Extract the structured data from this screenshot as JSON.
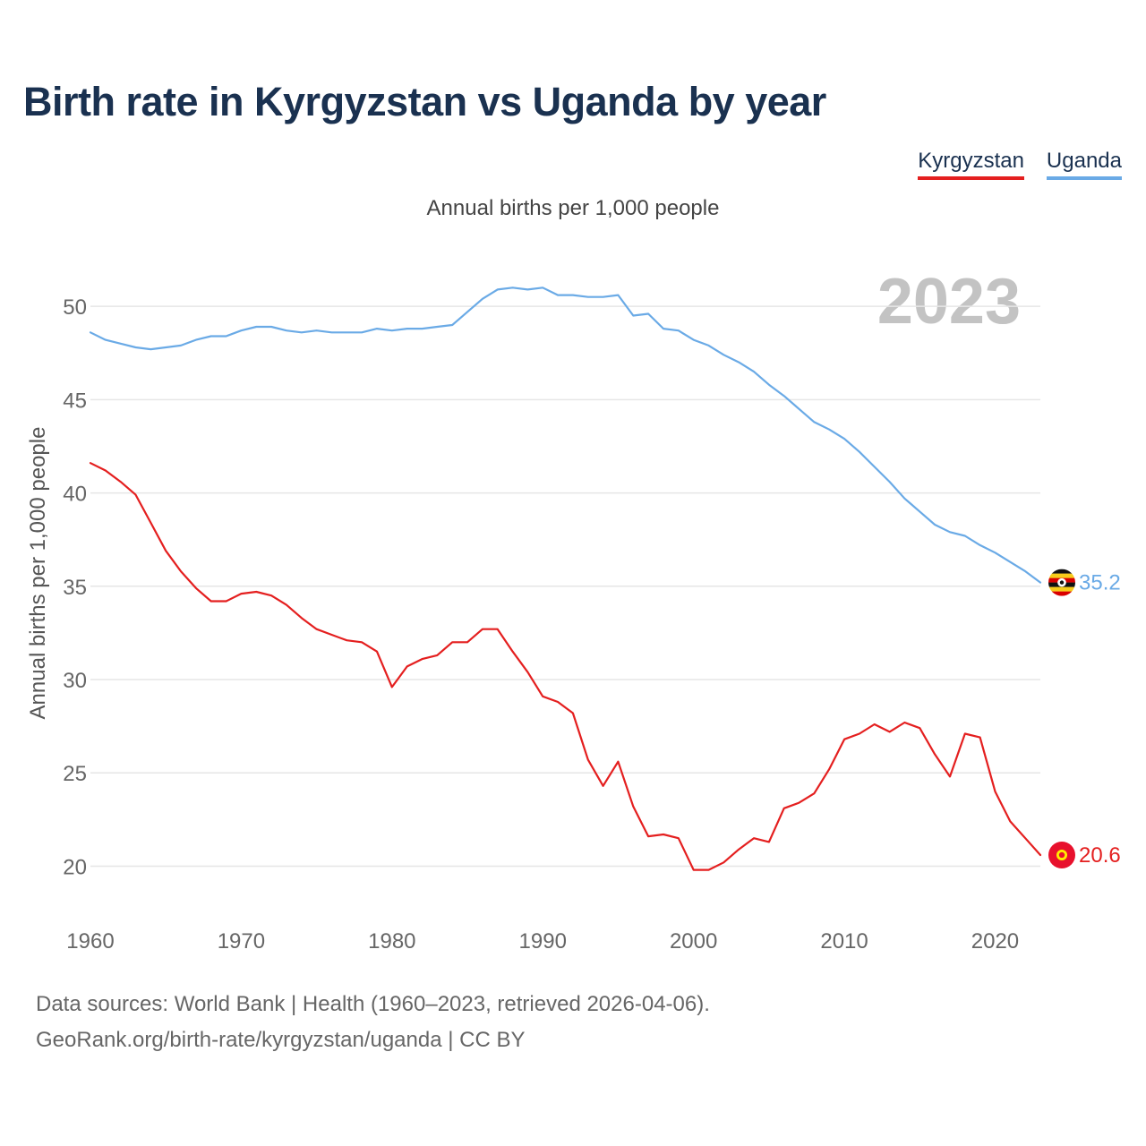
{
  "title": "Birth rate in Kyrgyzstan vs Uganda by year",
  "legend": [
    "Kyrgyzstan",
    "Uganda"
  ],
  "footer": {
    "source": "Data sources: World Bank | Health (1960–2023, retrieved 2026-04-06).",
    "credit": "GeoRank.org/birth-rate/kyrgyzstan/uganda | CC BY"
  },
  "chart_data": {
    "type": "line",
    "title": "Birth rate in Kyrgyzstan vs Uganda by year",
    "subtitle": "Annual births per 1,000 people",
    "ylabel": "Annual births per 1,000 people",
    "xlabel": "",
    "year_overlay": "2023",
    "xlim": [
      1960,
      2023
    ],
    "ylim": [
      17,
      52.5
    ],
    "x_ticks": [
      1960,
      1970,
      1980,
      1990,
      2000,
      2010,
      2020
    ],
    "y_ticks": [
      20,
      25,
      30,
      35,
      40,
      45,
      50
    ],
    "grid": true,
    "legend_position": "top-right",
    "x": [
      1960,
      1961,
      1962,
      1963,
      1964,
      1965,
      1966,
      1967,
      1968,
      1969,
      1970,
      1971,
      1972,
      1973,
      1974,
      1975,
      1976,
      1977,
      1978,
      1979,
      1980,
      1981,
      1982,
      1983,
      1984,
      1985,
      1986,
      1987,
      1988,
      1989,
      1990,
      1991,
      1992,
      1993,
      1994,
      1995,
      1996,
      1997,
      1998,
      1999,
      2000,
      2001,
      2002,
      2003,
      2004,
      2005,
      2006,
      2007,
      2008,
      2009,
      2010,
      2011,
      2012,
      2013,
      2014,
      2015,
      2016,
      2017,
      2018,
      2019,
      2020,
      2021,
      2022,
      2023
    ],
    "series": [
      {
        "name": "Kyrgyzstan",
        "color": "#e41f1f",
        "end_label": "20.6",
        "flag": "kyrgyzstan-flag",
        "values": [
          41.6,
          41.2,
          40.6,
          39.9,
          38.4,
          36.9,
          35.8,
          34.9,
          34.2,
          34.2,
          34.6,
          34.7,
          34.5,
          34.0,
          33.3,
          32.7,
          32.4,
          32.1,
          32.0,
          31.5,
          29.6,
          30.7,
          31.1,
          31.3,
          32.0,
          32.0,
          32.7,
          32.7,
          31.5,
          30.4,
          29.1,
          28.8,
          28.2,
          25.7,
          24.3,
          25.6,
          23.2,
          21.6,
          21.7,
          21.5,
          19.8,
          19.8,
          20.2,
          20.9,
          21.5,
          21.3,
          23.1,
          23.4,
          23.9,
          25.2,
          26.8,
          27.1,
          27.6,
          27.2,
          27.7,
          27.4,
          26.0,
          24.8,
          27.1,
          26.9,
          24.0,
          22.4,
          21.5,
          20.6
        ]
      },
      {
        "name": "Uganda",
        "color": "#6aaae6",
        "end_label": "35.2",
        "flag": "uganda-flag",
        "values": [
          48.6,
          48.2,
          48.0,
          47.8,
          47.7,
          47.8,
          47.9,
          48.2,
          48.4,
          48.4,
          48.7,
          48.9,
          48.9,
          48.7,
          48.6,
          48.7,
          48.6,
          48.6,
          48.6,
          48.8,
          48.7,
          48.8,
          48.8,
          48.9,
          49.0,
          49.7,
          50.4,
          50.9,
          51.0,
          50.9,
          51.0,
          50.6,
          50.6,
          50.5,
          50.5,
          50.6,
          49.5,
          49.6,
          48.8,
          48.7,
          48.2,
          47.9,
          47.4,
          47.0,
          46.5,
          45.8,
          45.2,
          44.5,
          43.8,
          43.4,
          42.9,
          42.2,
          41.4,
          40.6,
          39.7,
          39.0,
          38.3,
          37.9,
          37.7,
          37.2,
          36.8,
          36.3,
          35.8,
          35.2
        ]
      }
    ]
  }
}
